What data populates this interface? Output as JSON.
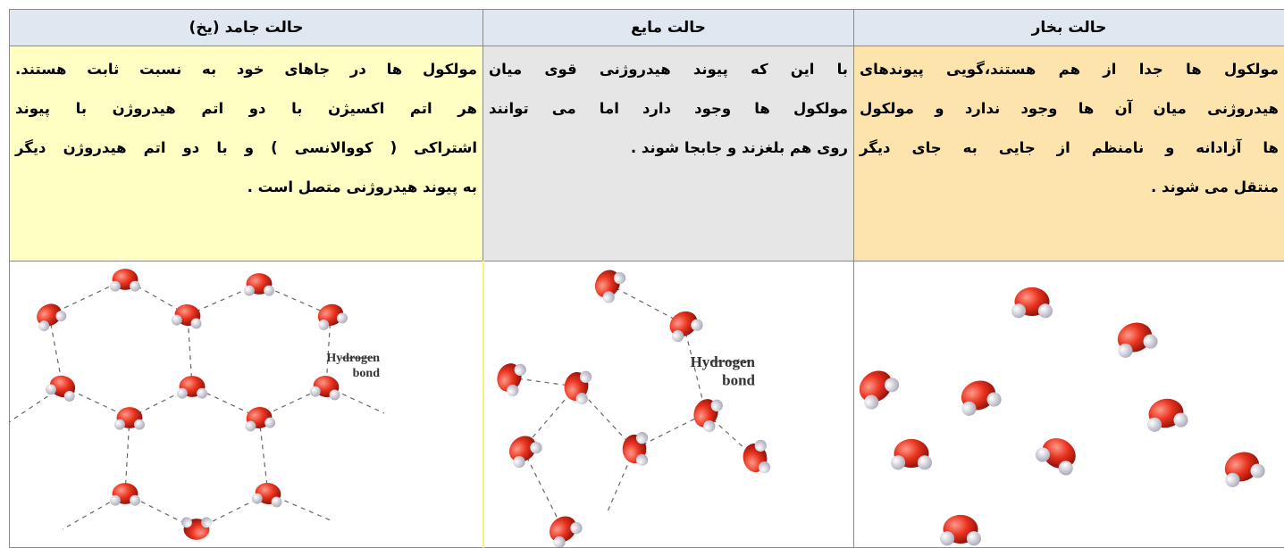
{
  "header": {
    "vapor": "حالت بخار",
    "liquid": "حالت مایع",
    "solid": "حالت جامد  (یخ)"
  },
  "descriptions": {
    "vapor": [
      "مولکول ها جدا از هم هستند،گویی پیوندهای",
      "هیدروژنی میان آن ها وجود ندارد و مولکول",
      "ها آزادانه و نامنظم از جایی به جای دیگر",
      "منتقل می شوند ."
    ],
    "liquid": [
      "با این که پیوند هیدروژنی قوی میان",
      "مولکول ها وجود دارد اما می توانند",
      "روی هم بلغزند و جابجا شوند ."
    ],
    "solid": [
      "مولکول ها در جاهای خود به نسبت ثابت هستند.",
      "هر اتم اکسیژن با دو اتم هیدروژن با پیوند",
      "اشتراکی ( کووالانسی ) و با دو اتم هیدروژن دیگر",
      "به پیوند هیدروژنی متصل است ."
    ]
  },
  "images": {
    "solid_label": [
      "Hydrogen",
      "bond"
    ],
    "liquid_label": [
      "Hydrogen",
      "bond"
    ]
  }
}
